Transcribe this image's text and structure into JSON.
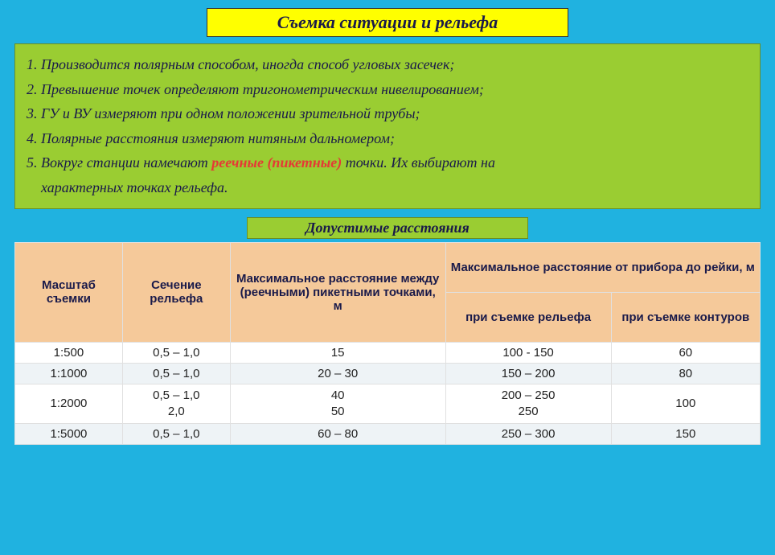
{
  "title": "Съемка ситуации и рельефа",
  "info": {
    "l1": "1. Производится полярным способом, иногда способ угловых засечек;",
    "l2": "2. Превышение точек определяют тригонометрическим нивелированием;",
    "l3": "3. ГУ и ВУ измеряют при одном положении зрительной трубы;",
    "l4": "4. Полярные расстояния измеряют нитяным дальномером;",
    "l5a": "5. Вокруг станции намечают ",
    "l5_hl": "реечные (пикетные)",
    "l5b": " точки. Их выбирают на",
    "l6": "    характерных точках рельефа."
  },
  "subtitle": "Допустимые расстояния",
  "table": {
    "h_scale": "Масштаб съемки",
    "h_section": "Сечение рельефа",
    "h_picket": "Максимальное расстояние между (реечными) пикетными точками, м",
    "h_dist_group": "Максимальное расстояние от прибора до рейки, м",
    "h_relief": "при съемке рельефа",
    "h_contour": "при съемке контуров",
    "rows": [
      {
        "scale": "1:500",
        "section": "0,5 – 1,0",
        "picket": "15",
        "relief": "100 - 150",
        "contour": "60"
      },
      {
        "scale": "1:1000",
        "section": "0,5 – 1,0",
        "picket": "20 – 30",
        "relief": "150 – 200",
        "contour": "80"
      },
      {
        "scale": "1:2000",
        "section": "0,5 – 1,0\n2,0",
        "picket": "40\n50",
        "relief": "200 – 250\n250",
        "contour": "100"
      },
      {
        "scale": "1:5000",
        "section": "0,5 – 1,0",
        "picket": "60 – 80",
        "relief": "250 – 300",
        "contour": "150"
      }
    ],
    "header_bg": "#f5c99a",
    "row_odd_bg": "#ffffff",
    "row_even_bg": "#eef3f6",
    "border_color": "#e0e0e0"
  },
  "colors": {
    "page_bg": "#20b2e0",
    "title_bg": "#ffff00",
    "box_bg": "#9acd32",
    "text": "#1a1a4a",
    "highlight": "#e53935"
  }
}
